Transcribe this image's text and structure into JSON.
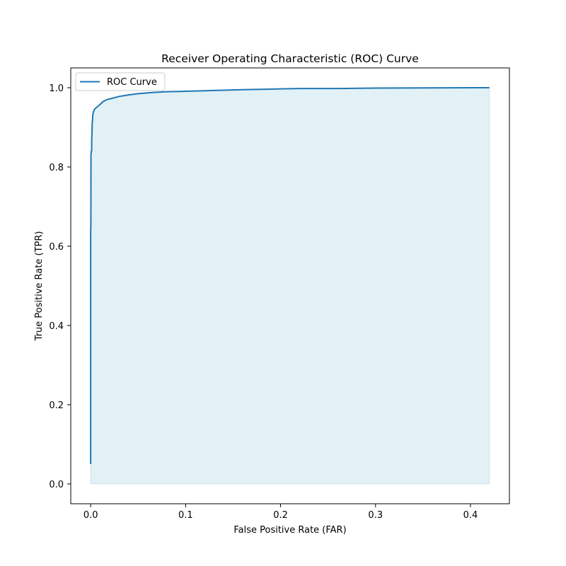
{
  "chart_data": {
    "type": "area",
    "title": "Receiver Operating Characteristic (ROC) Curve",
    "xlabel": "False Positive Rate (FAR)",
    "ylabel": "True Positive Rate (TPR)",
    "xlim": [
      -0.021,
      0.441
    ],
    "ylim": [
      -0.05,
      1.05
    ],
    "xticks": [
      0.0,
      0.1,
      0.2,
      0.3,
      0.4
    ],
    "xtick_labels": [
      "0.0",
      "0.1",
      "0.2",
      "0.3",
      "0.4"
    ],
    "yticks": [
      0.0,
      0.2,
      0.4,
      0.6,
      0.8,
      1.0
    ],
    "ytick_labels": [
      "0.0",
      "0.2",
      "0.4",
      "0.6",
      "0.8",
      "1.0"
    ],
    "grid": false,
    "legend_position": "upper-left",
    "fill_under_curve": true,
    "series": [
      {
        "name": "ROC Curve",
        "color": "#1f77b4",
        "fill_color": "#add8e6",
        "x": [
          0.0,
          0.0,
          0.0002,
          0.0003,
          0.0005,
          0.0007,
          0.001,
          0.0011,
          0.0013,
          0.0016,
          0.002,
          0.0022,
          0.0025,
          0.003,
          0.004,
          0.005,
          0.007,
          0.01,
          0.013,
          0.017,
          0.022,
          0.03,
          0.04,
          0.05,
          0.065,
          0.08,
          0.1,
          0.13,
          0.16,
          0.2,
          0.22,
          0.26,
          0.3,
          0.35,
          0.4,
          0.42
        ],
        "y": [
          0.05,
          0.63,
          0.66,
          0.83,
          0.835,
          0.84,
          0.84,
          0.87,
          0.88,
          0.91,
          0.92,
          0.93,
          0.935,
          0.94,
          0.945,
          0.948,
          0.952,
          0.958,
          0.965,
          0.97,
          0.973,
          0.978,
          0.982,
          0.985,
          0.988,
          0.99,
          0.991,
          0.993,
          0.995,
          0.997,
          0.998,
          0.998,
          0.999,
          0.9995,
          1.0,
          1.0
        ]
      }
    ]
  }
}
